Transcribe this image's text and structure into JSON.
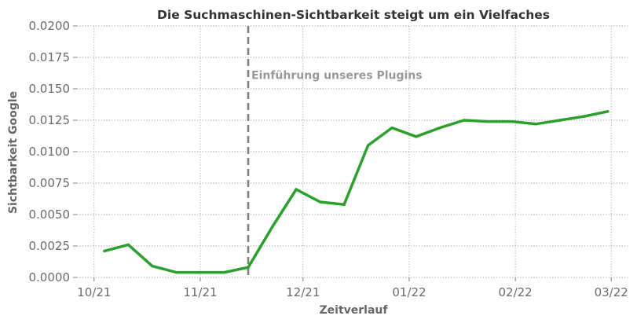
{
  "chart_data": {
    "type": "line",
    "title": "Die Suchmaschinen-Sichtbarkeit steigt um ein Vielfaches",
    "xlabel": "Zeitverlauf",
    "ylabel": "Sichtbarkeit Google",
    "ylim": [
      0,
      0.02
    ],
    "xlim": [
      "2021-09-26",
      "2022-03-06"
    ],
    "y_ticks": [
      "0.0000",
      "0.0025",
      "0.0050",
      "0.0075",
      "0.0100",
      "0.0125",
      "0.0150",
      "0.0175",
      "0.0200"
    ],
    "x_ticks": [
      {
        "date": "2021-10-01",
        "label": "10/21"
      },
      {
        "date": "2021-11-01",
        "label": "11/21"
      },
      {
        "date": "2021-12-01",
        "label": "12/21"
      },
      {
        "date": "2022-01-01",
        "label": "01/22"
      },
      {
        "date": "2022-02-01",
        "label": "02/22"
      },
      {
        "date": "2022-03-01",
        "label": "03/22"
      }
    ],
    "grid": true,
    "series": [
      {
        "color": "#2ca02c",
        "x": [
          "2021-10-04",
          "2021-10-11",
          "2021-10-18",
          "2021-10-25",
          "2021-11-01",
          "2021-11-08",
          "2021-11-15",
          "2021-11-22",
          "2021-11-29",
          "2021-12-06",
          "2021-12-13",
          "2021-12-20",
          "2021-12-27",
          "2022-01-03",
          "2022-01-10",
          "2022-01-17",
          "2022-01-24",
          "2022-01-31",
          "2022-02-07",
          "2022-02-14",
          "2022-02-21",
          "2022-02-28"
        ],
        "y": [
          0.0021,
          0.0026,
          0.0009,
          0.0004,
          0.0004,
          0.0004,
          0.0008,
          0.004,
          0.007,
          0.006,
          0.0058,
          0.0105,
          0.0119,
          0.0112,
          0.0119,
          0.0125,
          0.0124,
          0.0124,
          0.0122,
          0.0125,
          0.0128,
          0.0132
        ]
      }
    ],
    "annotations": [
      {
        "type": "vline",
        "x": "2021-11-15",
        "color": "#7f7f7f",
        "style": "dashed"
      },
      {
        "type": "text",
        "text": "Einführung unseres Plugins",
        "x": "2021-11-15",
        "y": 0.0161,
        "color": "#999999"
      }
    ]
  }
}
